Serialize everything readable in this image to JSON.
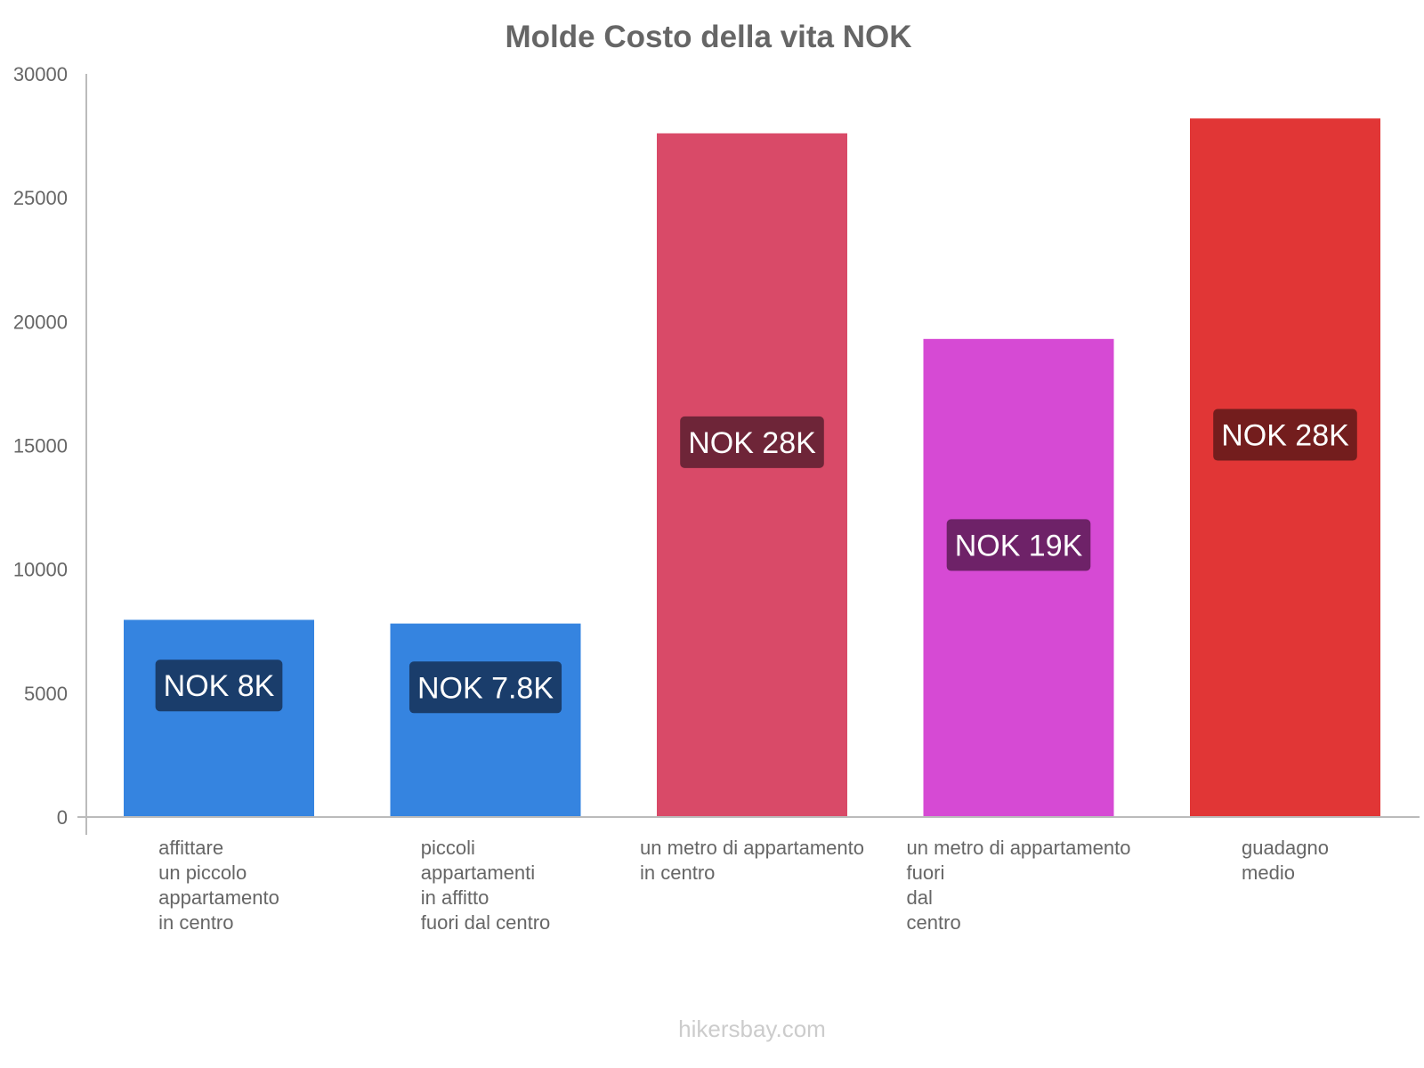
{
  "chart_data": {
    "type": "bar",
    "title": "Molde Costo della vita NOK",
    "xlabel": "",
    "ylabel": "",
    "ylim": [
      0,
      30000
    ],
    "yticks": [
      "0",
      "5000",
      "10000",
      "15000",
      "20000",
      "25000",
      "30000"
    ],
    "grid": false,
    "categories": [
      [
        "affittare",
        "un piccolo",
        "appartamento",
        "in centro"
      ],
      [
        "piccoli",
        "appartamenti",
        "in affitto",
        "fuori dal centro"
      ],
      [
        "un metro di appartamento",
        "in centro"
      ],
      [
        "un metro di appartamento",
        "fuori",
        "dal",
        "centro"
      ],
      [
        "guadagno",
        "medio"
      ]
    ],
    "values": [
      7960,
      7810,
      27600,
      19300,
      28200
    ],
    "data_labels": [
      "NOK 8K",
      "NOK 7.8K",
      "NOK 28K",
      "NOK 19K",
      "NOK 28K"
    ],
    "colors": [
      "#3584e0",
      "#3584e0",
      "#d94a68",
      "#d64ad4",
      "#e13636"
    ],
    "label_colors": [
      "#1a3d6b",
      "#1a3d6b",
      "#6e2538",
      "#6e2268",
      "#731d1d"
    ]
  },
  "footer": "hikersbay.com"
}
